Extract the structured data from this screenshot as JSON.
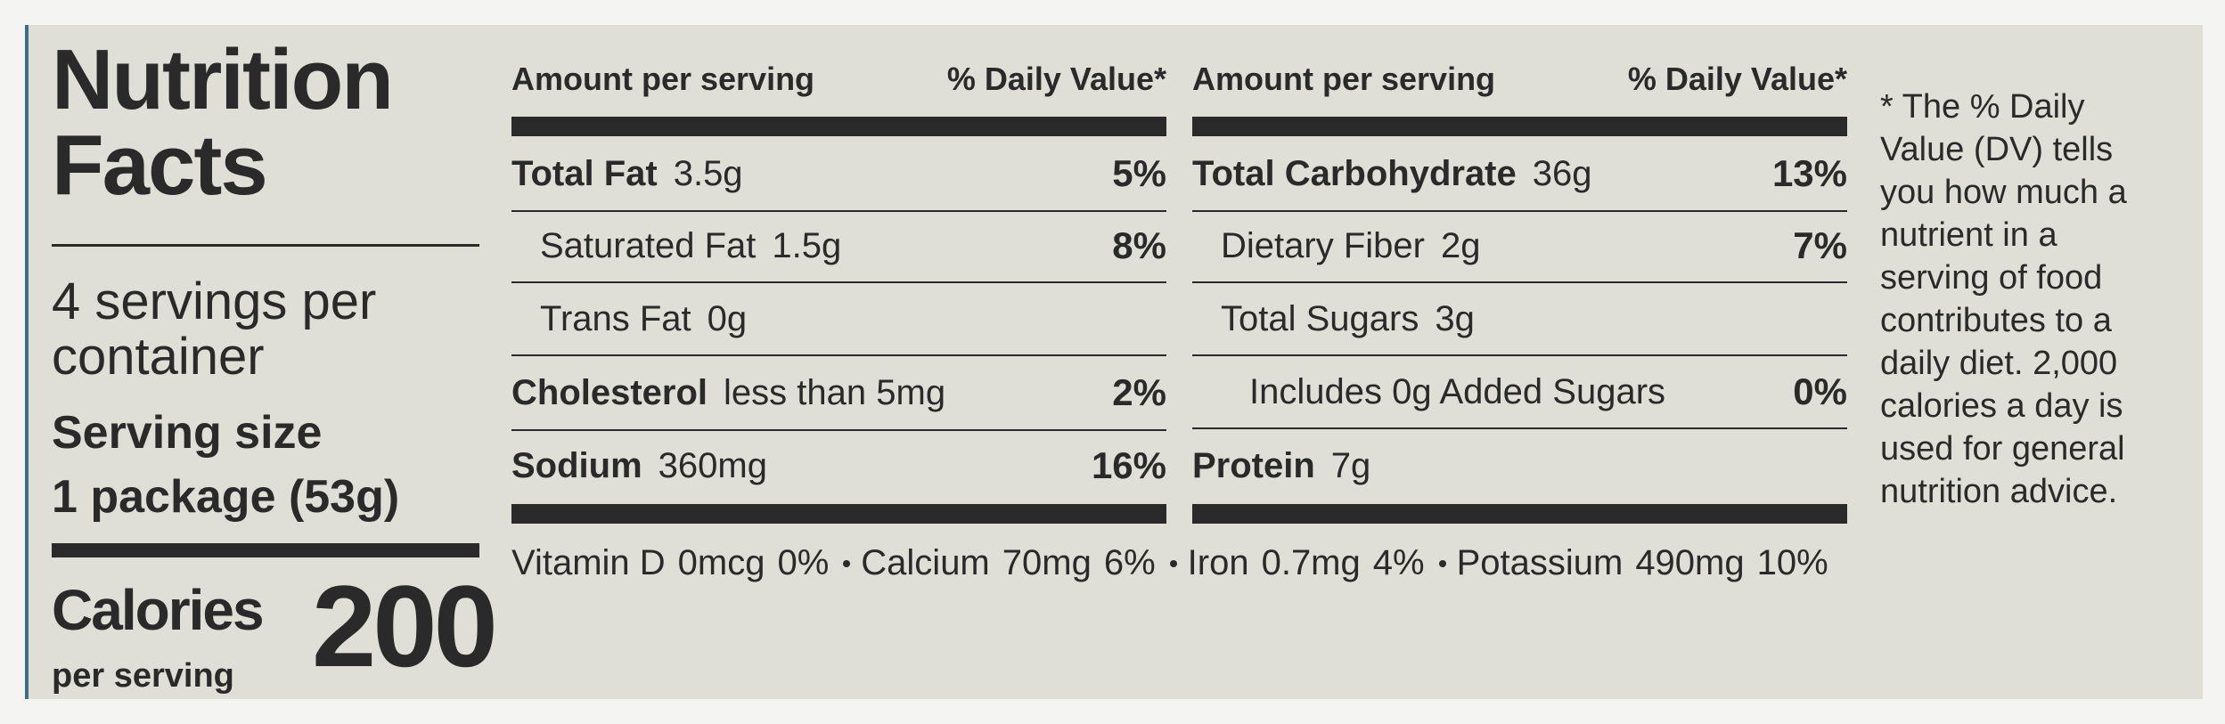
{
  "title": "Nutrition Facts",
  "servings": "4 servings per container",
  "serving_size": {
    "label": "Serving size",
    "value": "1 package (53g)"
  },
  "calories": {
    "label": "Calories",
    "sub": "per serving",
    "value": "200"
  },
  "columns": [
    {
      "header": {
        "amount": "Amount per serving",
        "dv": "% Daily Value*"
      },
      "rows": [
        {
          "name": "Total Fat",
          "amount": "3.5g",
          "dv": "5%"
        },
        {
          "name": "Saturated Fat",
          "amount": "1.5g",
          "dv": "8%"
        },
        {
          "name": "Trans Fat",
          "amount": "0g"
        },
        {
          "name": "Cholesterol",
          "amount": "less than 5mg",
          "dv": "2%"
        },
        {
          "name": "Sodium",
          "amount": "360mg",
          "dv": "16%"
        }
      ]
    },
    {
      "header": {
        "amount": "Amount per serving",
        "dv": "% Daily Value*"
      },
      "rows": [
        {
          "name": "Total Carbohydrate",
          "amount": "36g",
          "dv": "13%"
        },
        {
          "name": "Dietary Fiber",
          "amount": "2g",
          "dv": "7%"
        },
        {
          "name": "Total Sugars",
          "amount": "3g"
        },
        {
          "name": "Includes 0g Added Sugars",
          "dv": "0%"
        },
        {
          "name": "Protein",
          "amount": "7g"
        }
      ]
    }
  ],
  "vitamins": [
    {
      "name": "Vitamin D",
      "amount": "0mcg",
      "dv": "0%"
    },
    {
      "name": "Calcium",
      "amount": "70mg",
      "dv": "6%"
    },
    {
      "name": "Iron",
      "amount": "0.7mg",
      "dv": "4%"
    },
    {
      "name": "Potassium",
      "amount": "490mg",
      "dv": "10%"
    }
  ],
  "footnote": "* The % Daily Value (DV) tells you how much a nutrient in a serving of food contributes to a daily diet. 2,000 calories a day is used for general nutrition advice."
}
